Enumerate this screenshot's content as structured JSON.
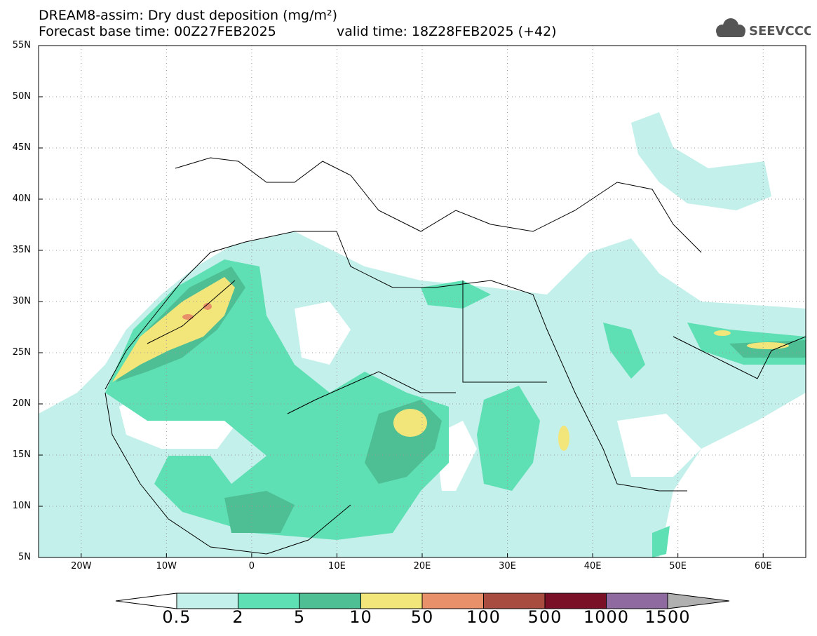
{
  "title": {
    "line1": "DREAM8-assim: Dry dust deposition (mg/m²)",
    "line2": "Forecast base time: 00Z27FEB2025",
    "valid": "valid time: 18Z28FEB2025 (+42)"
  },
  "logo": {
    "text": "SEEVCCC",
    "icon": "cloud-icon",
    "color": "#555555"
  },
  "map": {
    "lat_labels": [
      "55N",
      "50N",
      "45N",
      "40N",
      "35N",
      "30N",
      "25N",
      "20N",
      "15N",
      "10N",
      "5N"
    ],
    "lon_labels": [
      "20W",
      "10W",
      "0",
      "10E",
      "20E",
      "30E",
      "40E",
      "50E",
      "60E"
    ],
    "lat_range": [
      5,
      55
    ],
    "lon_range": [
      -25,
      65
    ],
    "grid": "dotted"
  },
  "legend": {
    "labels": [
      "0.5",
      "2",
      "5",
      "10",
      "50",
      "100",
      "500",
      "1000",
      "1500"
    ],
    "colors": [
      "#c3f0ea",
      "#5ee0b4",
      "#4ebf94",
      "#f2e67a",
      "#e8906a",
      "#a84c40",
      "#7a1028",
      "#8e6aa0",
      "#b0b0b0"
    ],
    "unit": "mg/m²"
  }
}
